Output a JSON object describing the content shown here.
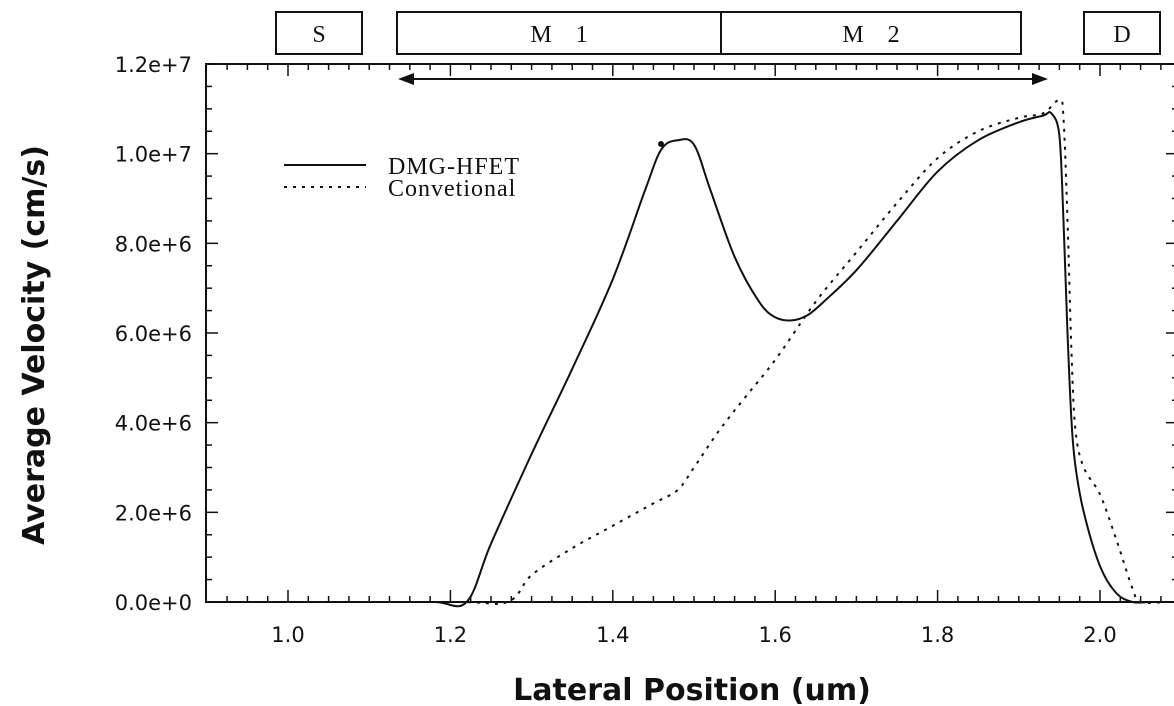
{
  "chart_data": {
    "type": "line",
    "title": "",
    "xlabel": "Lateral Position (um)",
    "ylabel": "Average Velocity (cm/s)",
    "xlim": [
      0.9,
      2.08
    ],
    "ylim": [
      0,
      12000000
    ],
    "x_ticks": [
      {
        "value": 1.0,
        "label": "1.0"
      },
      {
        "value": 1.2,
        "label": "1.2"
      },
      {
        "value": 1.4,
        "label": "1.4"
      },
      {
        "value": 1.6,
        "label": "1.6"
      },
      {
        "value": 1.8,
        "label": "1.8"
      },
      {
        "value": 2.0,
        "label": "2.0"
      }
    ],
    "y_ticks": [
      {
        "value": 0,
        "label": "0.0e+0"
      },
      {
        "value": 2000000,
        "label": "2.0e+6"
      },
      {
        "value": 4000000,
        "label": "4.0e+6"
      },
      {
        "value": 6000000,
        "label": "6.0e+6"
      },
      {
        "value": 8000000,
        "label": "8.0e+6"
      },
      {
        "value": 10000000,
        "label": "1.0e+7"
      },
      {
        "value": 12000000,
        "label": "1.2e+7"
      }
    ],
    "legend_position": "top-left",
    "grid": false,
    "series": [
      {
        "name": "DMG-HFET",
        "style": "solid",
        "color": "#111111",
        "x": [
          0.9,
          1.1,
          1.18,
          1.22,
          1.25,
          1.3,
          1.35,
          1.4,
          1.44,
          1.46,
          1.48,
          1.5,
          1.52,
          1.55,
          1.58,
          1.6,
          1.62,
          1.64,
          1.66,
          1.7,
          1.75,
          1.8,
          1.85,
          1.9,
          1.93,
          1.94,
          1.95,
          1.955,
          1.96,
          1.965,
          1.97,
          1.98,
          2.0,
          2.02,
          2.04,
          2.06
        ],
        "y": [
          0,
          0,
          0,
          0,
          1300000,
          3300000,
          5200000,
          7200000,
          9200000,
          10100000,
          10300000,
          10200000,
          9200000,
          7700000,
          6700000,
          6350000,
          6280000,
          6400000,
          6700000,
          7400000,
          8500000,
          9600000,
          10300000,
          10700000,
          10850000,
          10900000,
          10400000,
          8500000,
          6000000,
          4000000,
          3000000,
          2000000,
          800000,
          200000,
          0,
          0
        ]
      },
      {
        "name": "Convetional",
        "style": "dotted",
        "color": "#111111",
        "x": [
          0.9,
          1.2,
          1.27,
          1.3,
          1.35,
          1.4,
          1.45,
          1.48,
          1.5,
          1.53,
          1.56,
          1.6,
          1.65,
          1.7,
          1.75,
          1.8,
          1.85,
          1.9,
          1.93,
          1.95,
          1.955,
          1.96,
          1.965,
          1.97,
          1.98,
          2.0,
          2.02,
          2.04,
          2.05,
          2.08
        ],
        "y": [
          0,
          0,
          0,
          600000,
          1200000,
          1700000,
          2200000,
          2500000,
          3000000,
          3800000,
          4500000,
          5400000,
          6700000,
          7800000,
          8900000,
          9900000,
          10500000,
          10800000,
          10900000,
          11200000,
          10800000,
          8500000,
          5500000,
          3800000,
          3000000,
          2400000,
          1400000,
          300000,
          0,
          0
        ]
      }
    ]
  },
  "regions": [
    {
      "label": "S"
    },
    {
      "label": "M    1"
    },
    {
      "label": "M    2"
    },
    {
      "label": "D"
    }
  ]
}
